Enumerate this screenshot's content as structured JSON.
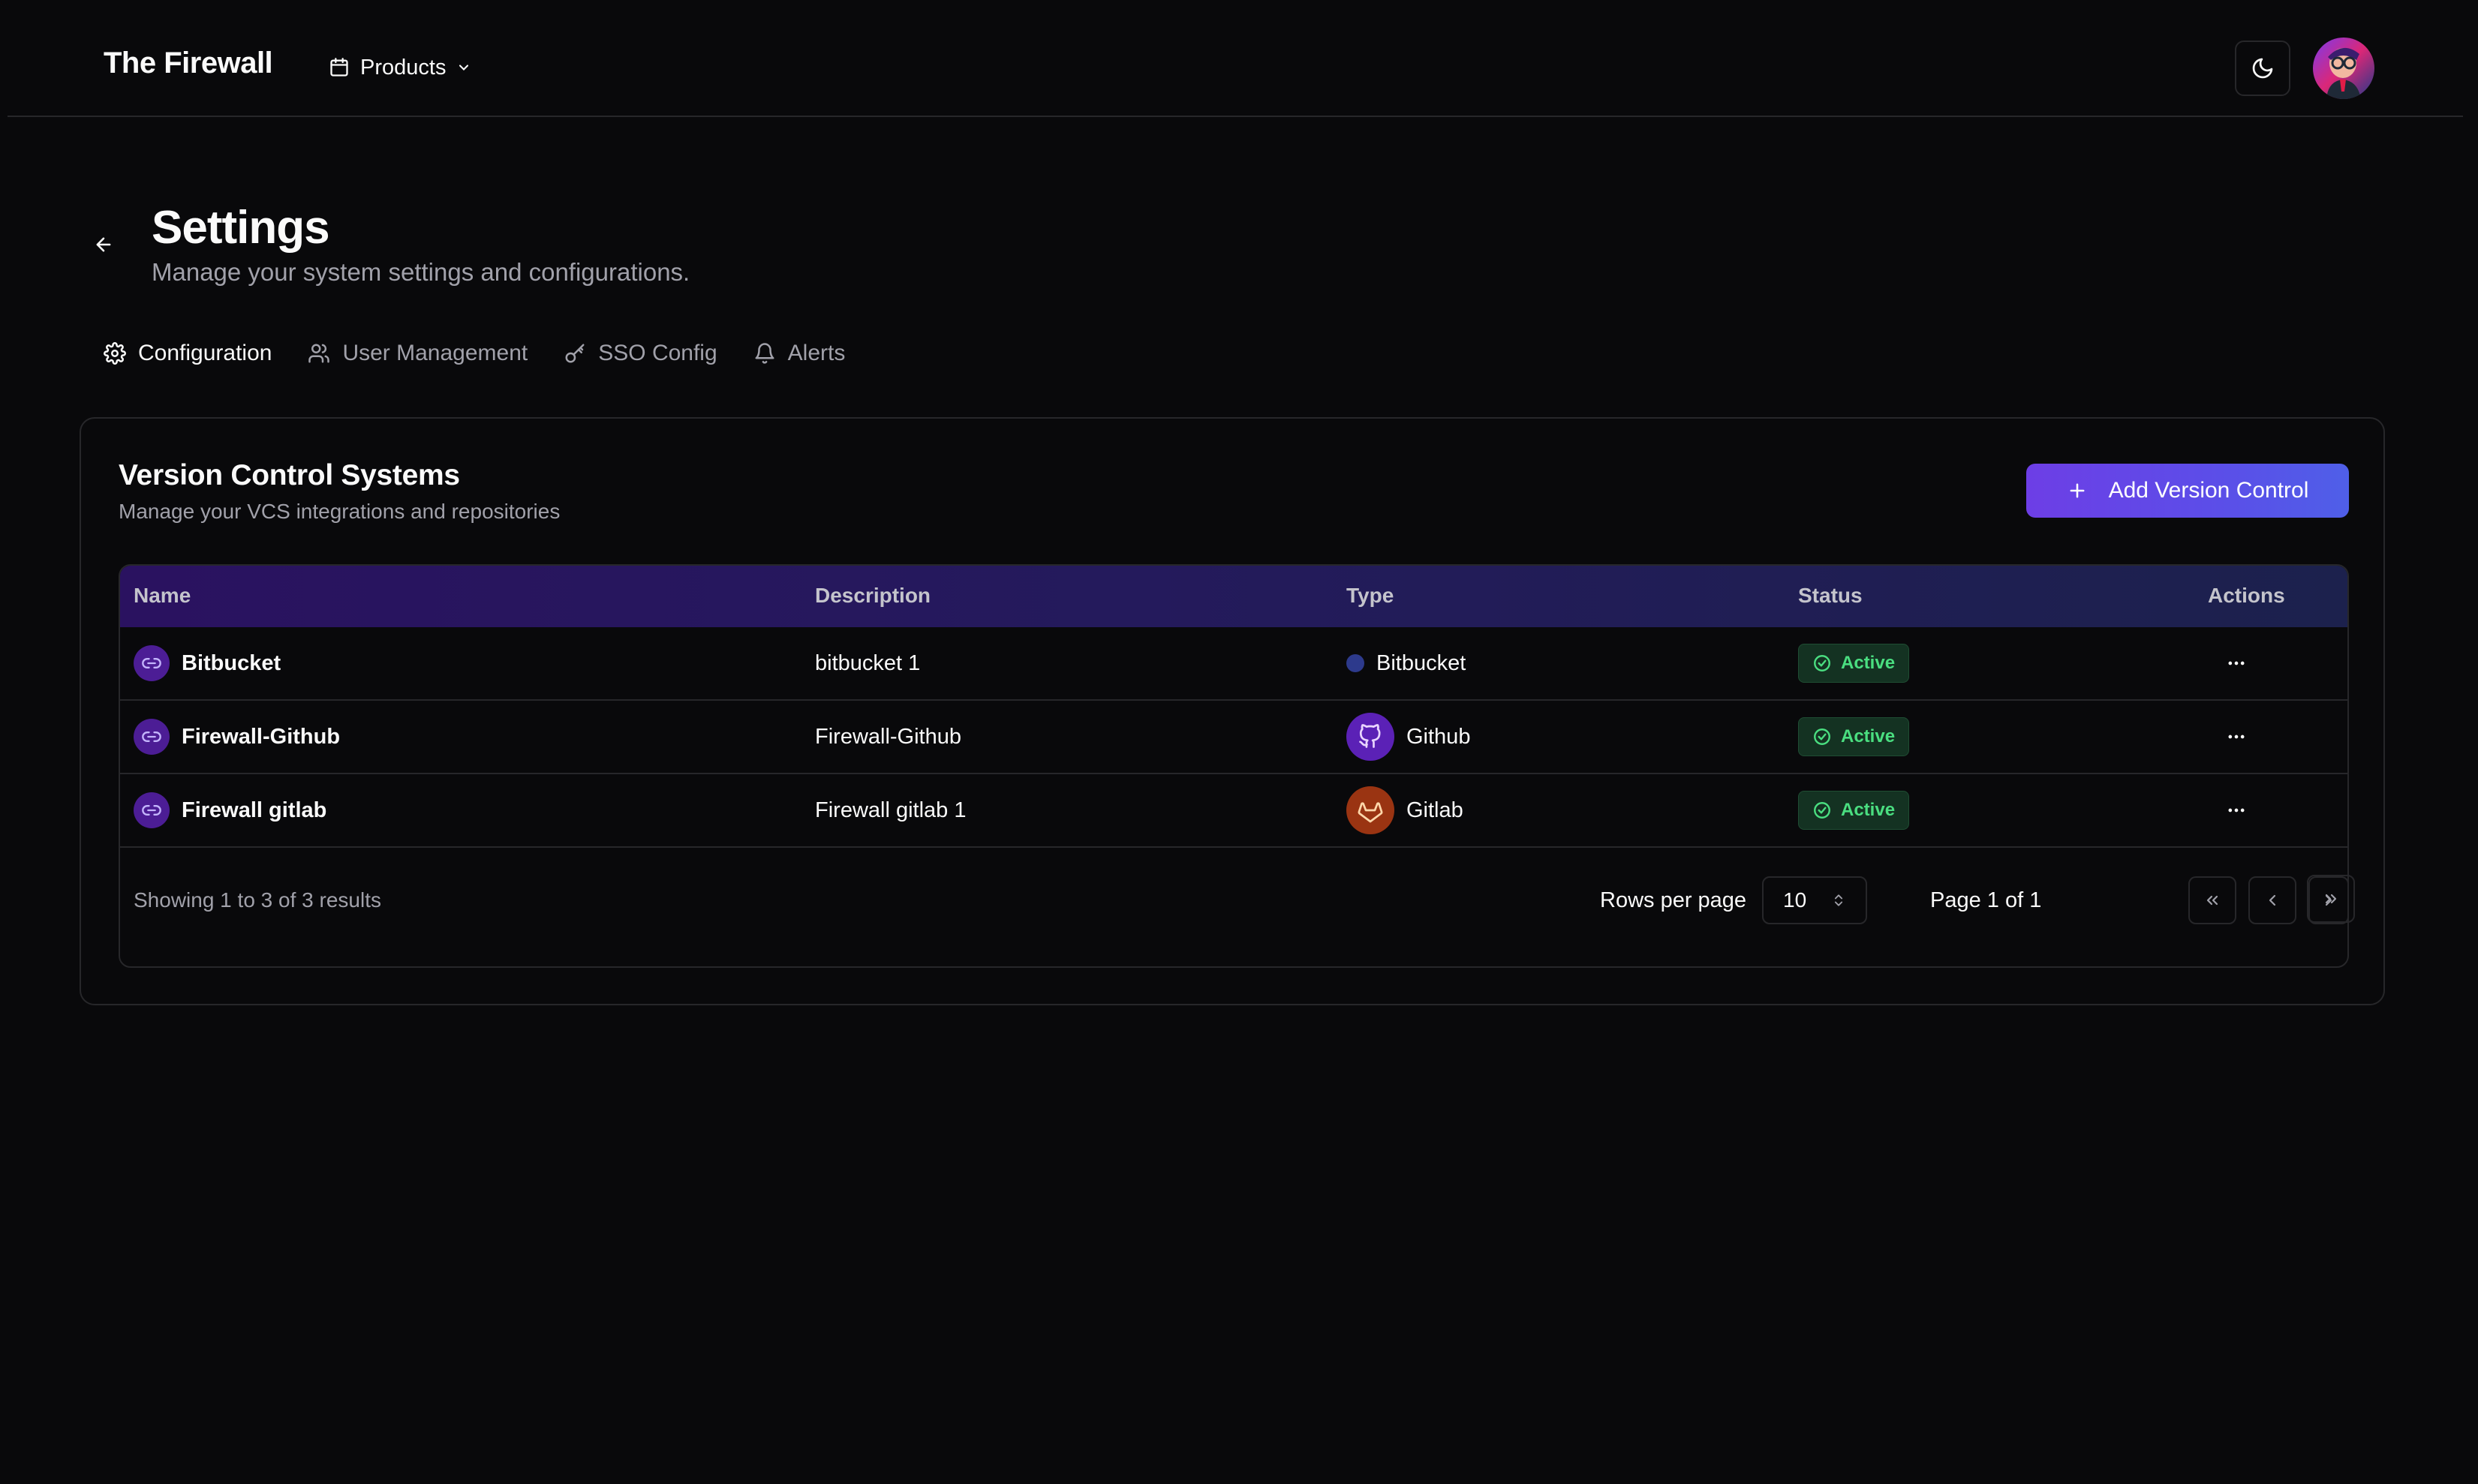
{
  "nav": {
    "brand": "The Firewall",
    "products_label": "Products",
    "icons": {
      "products": "calendar-icon",
      "dropdown": "chevron-down-icon",
      "theme": "moon-icon"
    }
  },
  "header": {
    "title": "Settings",
    "subtitle": "Manage your system settings and configurations."
  },
  "tabs": [
    {
      "label": "Configuration",
      "icon": "gear-icon",
      "active": true
    },
    {
      "label": "User Management",
      "icon": "users-icon",
      "active": false
    },
    {
      "label": "SSO Config",
      "icon": "key-icon",
      "active": false
    },
    {
      "label": "Alerts",
      "icon": "bell-icon",
      "active": false
    }
  ],
  "card": {
    "title": "Version Control Systems",
    "subtitle": "Manage your VCS integrations and repositories",
    "add_button": "Add Version Control"
  },
  "table": {
    "columns": [
      "Name",
      "Description",
      "Type",
      "Status",
      "Actions"
    ],
    "rows": [
      {
        "name": "Bitbucket",
        "description": "bitbucket 1",
        "type": "Bitbucket",
        "status": "Active"
      },
      {
        "name": "Firewall-Github",
        "description": "Firewall-Github",
        "type": "Github",
        "status": "Active"
      },
      {
        "name": "Firewall gitlab",
        "description": "Firewall gitlab 1",
        "type": "Gitlab",
        "status": "Active"
      }
    ]
  },
  "pagination": {
    "results": "Showing 1 to 3 of 3 results",
    "rows_label": "Rows per page",
    "rows_value": "10",
    "page_info": "Page 1 of 1"
  },
  "colors": {
    "background": "#09090b",
    "border": "#27272a",
    "accent": "#6d3ee6",
    "status_active": "#4ade80",
    "bitbucket": "#2d3a8c",
    "github": "#5b21b6",
    "gitlab": "#9a3412"
  }
}
